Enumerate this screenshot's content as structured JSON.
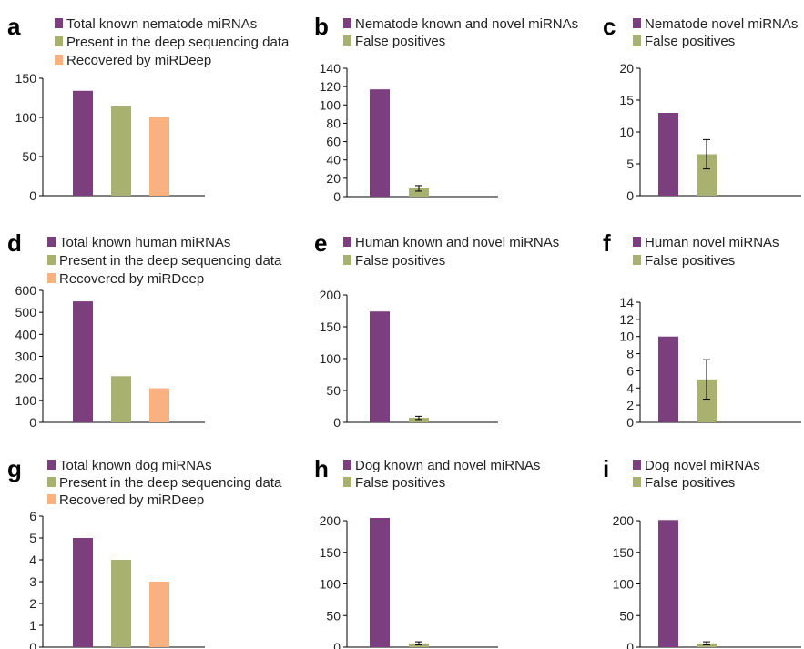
{
  "colors": {
    "purple": "#7b3f7e",
    "green": "#a8b170",
    "orange": "#f9b17f",
    "errorbar": "#000000"
  },
  "chart_data": [
    {
      "panel": "a",
      "type": "bar",
      "categories": [
        "Total known nematode miRNAs",
        "Present in the deep sequencing data",
        "Recovered by miRDeep"
      ],
      "values": [
        134,
        114,
        101
      ],
      "ylim": [
        0,
        150
      ],
      "yticks": [
        0,
        50,
        100,
        150
      ],
      "legend": [
        "Total known nematode miRNAs",
        "Present in the deep sequencing data",
        "Recovered by miRDeep"
      ],
      "colors": [
        "purple",
        "green",
        "orange"
      ]
    },
    {
      "panel": "b",
      "type": "bar",
      "categories": [
        "Nematode known and novel miRNAs",
        "False positives"
      ],
      "values": [
        117,
        9
      ],
      "errors": [
        null,
        3
      ],
      "ylim": [
        0,
        140
      ],
      "yticks": [
        0,
        20,
        40,
        60,
        80,
        100,
        120,
        140
      ],
      "legend": [
        "Nematode known and novel miRNAs",
        "False positives"
      ],
      "colors": [
        "purple",
        "green"
      ]
    },
    {
      "panel": "c",
      "type": "bar",
      "categories": [
        "Nematode novel miRNAs",
        "False positives"
      ],
      "values": [
        13,
        6.5
      ],
      "errors": [
        null,
        2.3
      ],
      "ylim": [
        0,
        20
      ],
      "yticks": [
        0,
        5,
        10,
        15,
        20
      ],
      "legend": [
        "Nematode novel miRNAs",
        "False positives"
      ],
      "colors": [
        "purple",
        "green"
      ]
    },
    {
      "panel": "d",
      "type": "bar",
      "categories": [
        "Total known human miRNAs",
        "Present in the deep sequencing data",
        "Recovered by miRDeep"
      ],
      "values": [
        550,
        210,
        155
      ],
      "ylim": [
        0,
        600
      ],
      "yticks": [
        0,
        100,
        200,
        300,
        400,
        500,
        600
      ],
      "legend": [
        "Total known human miRNAs",
        "Present in the deep sequencing data",
        "Recovered by miRDeep"
      ],
      "colors": [
        "purple",
        "green",
        "orange"
      ]
    },
    {
      "panel": "e",
      "type": "bar",
      "categories": [
        "Human known and novel miRNAs",
        "False positives"
      ],
      "values": [
        174,
        7
      ],
      "errors": [
        null,
        2.5
      ],
      "ylim": [
        0,
        200
      ],
      "yticks": [
        0,
        50,
        100,
        150,
        200
      ],
      "legend": [
        "Human known and novel miRNAs",
        "False positives"
      ],
      "colors": [
        "purple",
        "green"
      ]
    },
    {
      "panel": "f",
      "type": "bar",
      "categories": [
        "Human novel miRNAs",
        "False positives"
      ],
      "values": [
        10,
        5
      ],
      "errors": [
        null,
        2.3
      ],
      "ylim": [
        0,
        14
      ],
      "yticks": [
        0,
        2,
        4,
        6,
        8,
        10,
        12,
        14
      ],
      "legend": [
        "Human novel miRNAs",
        "False positives"
      ],
      "colors": [
        "purple",
        "green"
      ]
    },
    {
      "panel": "g",
      "type": "bar",
      "categories": [
        "Total known dog miRNAs",
        "Present in the deep sequencing data",
        "Recovered by miRDeep"
      ],
      "values": [
        5,
        4,
        3
      ],
      "ylim": [
        0,
        6
      ],
      "yticks": [
        0,
        1,
        2,
        3,
        4,
        5,
        6
      ],
      "legend": [
        "Total known dog miRNAs",
        "Present in the deep sequencing data",
        "Recovered by miRDeep"
      ],
      "colors": [
        "purple",
        "green",
        "orange"
      ]
    },
    {
      "panel": "h",
      "type": "bar",
      "categories": [
        "Dog known and novel miRNAs",
        "False positives"
      ],
      "values": [
        206,
        6
      ],
      "errors": [
        null,
        2.5
      ],
      "ylim": [
        0,
        200
      ],
      "yticks": [
        0,
        50,
        100,
        150,
        200
      ],
      "legend": [
        "Dog known and novel miRNAs",
        "False positives"
      ],
      "colors": [
        "purple",
        "green"
      ]
    },
    {
      "panel": "i",
      "type": "bar",
      "categories": [
        "Dog novel miRNAs",
        "False positives"
      ],
      "values": [
        201,
        6
      ],
      "errors": [
        null,
        2.5
      ],
      "ylim": [
        0,
        200
      ],
      "yticks": [
        0,
        50,
        100,
        150,
        200
      ],
      "legend": [
        "Dog novel miRNAs",
        "False positives"
      ],
      "colors": [
        "purple",
        "green"
      ]
    }
  ]
}
